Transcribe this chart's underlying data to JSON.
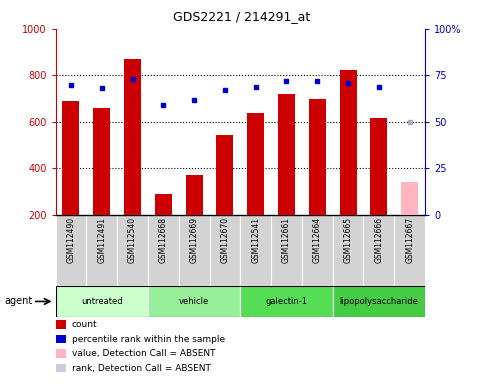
{
  "title": "GDS2221 / 214291_at",
  "samples": [
    "GSM112490",
    "GSM112491",
    "GSM112540",
    "GSM112668",
    "GSM112669",
    "GSM112670",
    "GSM112541",
    "GSM112661",
    "GSM112664",
    "GSM112665",
    "GSM112666",
    "GSM112667"
  ],
  "bar_values": [
    690,
    660,
    870,
    290,
    370,
    545,
    640,
    720,
    700,
    825,
    615,
    340
  ],
  "bar_colors": [
    "#cc0000",
    "#cc0000",
    "#cc0000",
    "#cc0000",
    "#cc0000",
    "#cc0000",
    "#cc0000",
    "#cc0000",
    "#cc0000",
    "#cc0000",
    "#cc0000",
    "#ffb6c1"
  ],
  "dot_values": [
    70,
    68,
    73,
    59,
    62,
    67,
    69,
    72,
    72,
    71,
    69,
    50
  ],
  "dot_absent": [
    false,
    false,
    false,
    false,
    false,
    false,
    false,
    false,
    false,
    false,
    false,
    true
  ],
  "groups": [
    {
      "label": "untreated",
      "start": 0,
      "end": 3,
      "color": "#ccffcc"
    },
    {
      "label": "vehicle",
      "start": 3,
      "end": 6,
      "color": "#99ee99"
    },
    {
      "label": "galectin-1",
      "start": 6,
      "end": 9,
      "color": "#55dd55"
    },
    {
      "label": "lipopolysaccharide",
      "start": 9,
      "end": 12,
      "color": "#44cc44"
    }
  ],
  "ylim_left": [
    200,
    1000
  ],
  "ylim_right": [
    0,
    100
  ],
  "yticks_left": [
    200,
    400,
    600,
    800,
    1000
  ],
  "yticks_right": [
    0,
    25,
    50,
    75,
    100
  ],
  "left_axis_color": "#cc0000",
  "right_axis_color": "#0000cc",
  "dot_color": "#0000cc",
  "dot_absent_color": "#aaaacc",
  "legend_items": [
    {
      "color": "#cc0000",
      "label": "count"
    },
    {
      "color": "#0000cc",
      "label": "percentile rank within the sample"
    },
    {
      "color": "#ffb6c1",
      "label": "value, Detection Call = ABSENT"
    },
    {
      "color": "#ccccdd",
      "label": "rank, Detection Call = ABSENT"
    }
  ]
}
